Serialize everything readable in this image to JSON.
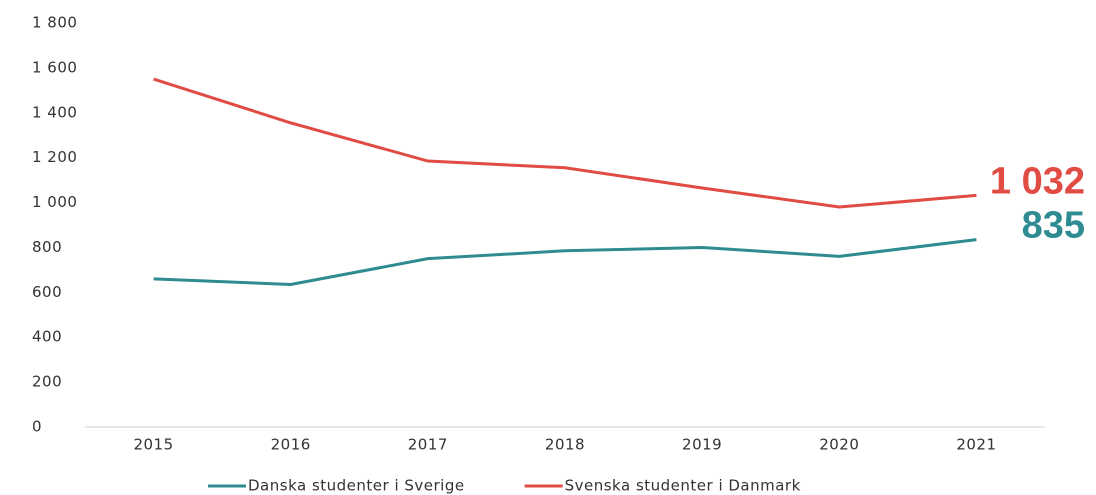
{
  "chart_data": {
    "type": "line",
    "categories": [
      "2015",
      "2016",
      "2017",
      "2018",
      "2019",
      "2020",
      "2021"
    ],
    "series": [
      {
        "name": "Danska studenter i Sverige",
        "color": "#2e8b92",
        "values": [
          660,
          635,
          750,
          785,
          800,
          760,
          835
        ]
      },
      {
        "name": "Svenska studenter i Danmark",
        "color": "#e04b43",
        "values": [
          1550,
          1355,
          1185,
          1155,
          1065,
          980,
          1032
        ],
        "value_labels": [
          null,
          null,
          null,
          null,
          null,
          null,
          "1 032"
        ]
      }
    ],
    "ylim": [
      0,
      1800
    ],
    "yticks": [
      0,
      200,
      400,
      600,
      800,
      {
        "value": 1000,
        "label": "1 000"
      },
      {
        "value": 1200,
        "label": "1 200"
      },
      {
        "value": 1400,
        "label": "1 400"
      },
      {
        "value": 1600,
        "label": "1 600"
      },
      {
        "value": 1800,
        "label": "1 800"
      }
    ],
    "grid": false,
    "legend": "bottom"
  }
}
